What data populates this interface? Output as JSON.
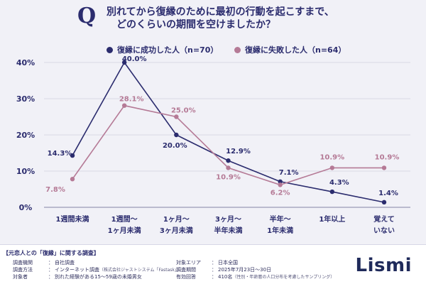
{
  "title": {
    "icon": "Q",
    "line1": "別れてから復縁のために最初の行動を起こすまで、",
    "line2": "どのくらいの期間を空けましたか？"
  },
  "chart_data": {
    "type": "line",
    "categories": [
      [
        "1週間未満"
      ],
      [
        "1週間〜",
        "1ヶ月未満"
      ],
      [
        "1ヶ月〜",
        "3ヶ月未満"
      ],
      [
        "3ヶ月〜",
        "半年未満"
      ],
      [
        "半年〜",
        "1年未満"
      ],
      [
        "1年以上"
      ],
      [
        "覚えて",
        "いない"
      ]
    ],
    "series": [
      {
        "name": "復縁に成功した人（n=70）",
        "color": "#2b2c6e",
        "values": [
          14.3,
          40.0,
          20.0,
          12.9,
          7.1,
          4.3,
          1.4
        ],
        "labels": [
          "14.3%",
          "40.0%",
          "20.0%",
          "12.9%",
          "7.1%",
          "4.3%",
          "1.4%"
        ]
      },
      {
        "name": "復縁に失敗した人（n=64）",
        "color": "#b57a96",
        "values": [
          7.8,
          28.1,
          25.0,
          10.9,
          6.2,
          10.9,
          10.9
        ],
        "labels": [
          "7.8%",
          "28.1%",
          "25.0%",
          "10.9%",
          "6.2%",
          "10.9%",
          "10.9%"
        ]
      }
    ],
    "ylim": [
      0,
      40
    ],
    "yticks": [
      0,
      10,
      20,
      30,
      40
    ],
    "ytick_labels": [
      "0%",
      "10%",
      "20%",
      "30%",
      "40%"
    ],
    "grid": true,
    "legend_position": "top"
  },
  "footer": {
    "title": "【元恋人との「復縁」に関する調査】",
    "rows_left": [
      {
        "key": "調査機関",
        "value": "自社調査",
        "note": ""
      },
      {
        "key": "調査方法",
        "value": "インターネット調査",
        "note": "（株式会社ジャストシステム「Fastask」）"
      },
      {
        "key": "対象者",
        "value": "別れた経験がある15〜59歳の未婚男女",
        "note": ""
      }
    ],
    "rows_right": [
      {
        "key": "対象エリア",
        "value": "日本全国",
        "note": ""
      },
      {
        "key": "調査期間",
        "value": "2025年7月23日〜30日",
        "note": ""
      },
      {
        "key": "有効回答",
        "value": "410名",
        "note": "（性別・年齢層の人口分布を考慮したサンプリング）"
      }
    ],
    "separator": "：",
    "logo": "Lismi"
  }
}
